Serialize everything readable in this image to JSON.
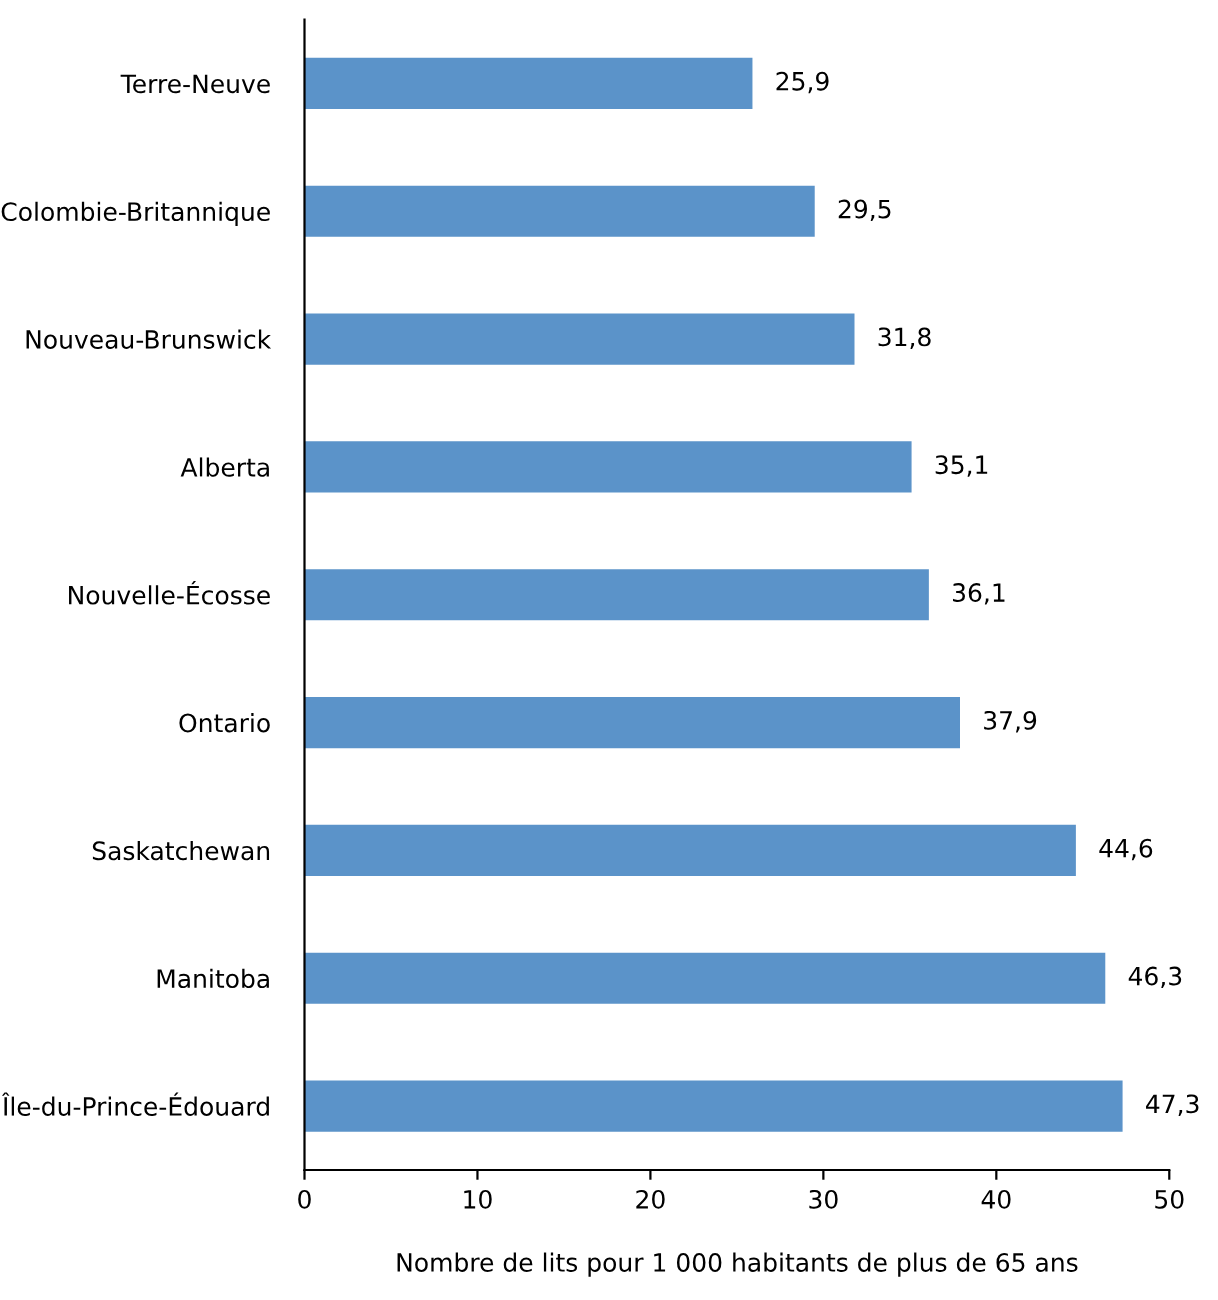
{
  "chart_data": {
    "type": "bar",
    "orientation": "horizontal",
    "xlabel": "Nombre de lits pour 1 000 habitants de plus de 65 ans",
    "categories": [
      "Terre-Neuve",
      "Colombie-Britannique",
      "Nouveau-Brunswick",
      "Alberta",
      "Nouvelle-Écosse",
      "Ontario",
      "Saskatchewan",
      "Manitoba",
      "Île-du-Prince-Édouard"
    ],
    "values": [
      25.9,
      29.5,
      31.8,
      35.1,
      36.1,
      37.9,
      44.6,
      46.3,
      47.3
    ],
    "value_labels": [
      "25,9",
      "29,5",
      "31,8",
      "35,1",
      "36,1",
      "37,9",
      "44,6",
      "46,3",
      "47,3"
    ],
    "color": "#5b93c9",
    "xlim": [
      0,
      50
    ],
    "xticks": [
      0,
      10,
      20,
      30,
      40,
      50
    ],
    "grid": false,
    "legend": false
  }
}
